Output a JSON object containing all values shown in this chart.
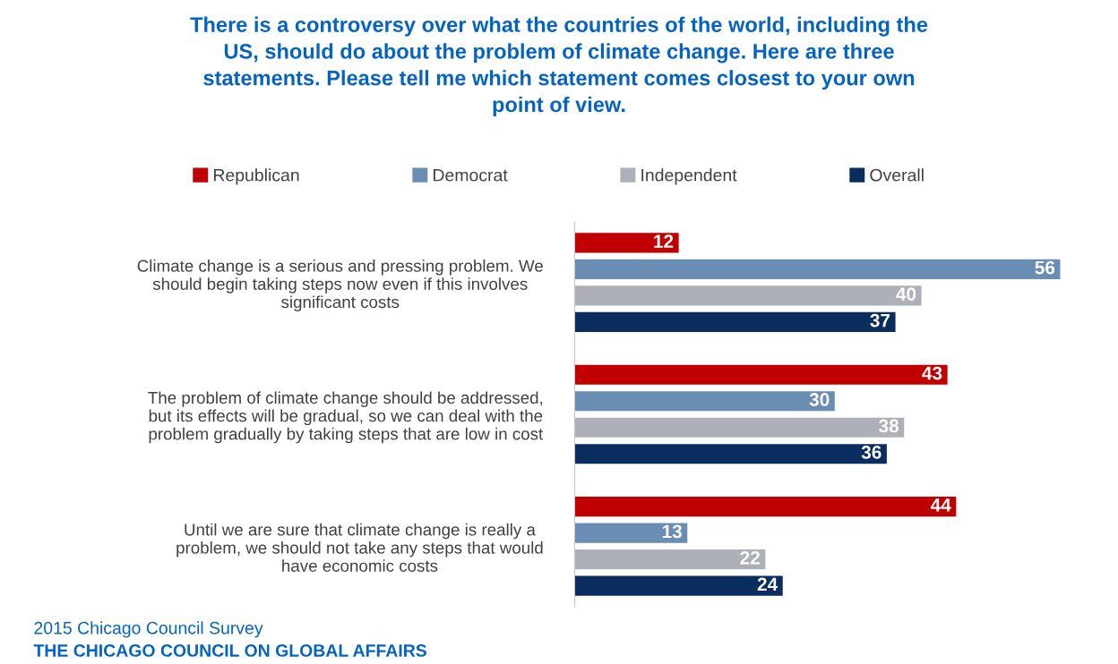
{
  "chart_data": {
    "type": "bar",
    "orientation": "horizontal",
    "title": "There is a controversy over what the countries of the world, including the\nUS, should do about the problem of climate change. Here are three\nstatements. Please tell me which statement comes closest to your own\npoint of view.",
    "categories": [
      "Climate change is a serious and pressing problem. We\nshould begin taking steps now even if this involves\nsignificant costs",
      "The problem of climate change should be addressed,\nbut its effects will be gradual, so we can deal with the\nproblem gradually by taking steps that are low in cost",
      "Until we are sure that climate change is really a\nproblem, we should not take any steps that would\nhave economic costs"
    ],
    "series": [
      {
        "name": "Republican",
        "color": "#c00000",
        "values": [
          12,
          43,
          44
        ]
      },
      {
        "name": "Democrat",
        "color": "#6a8db4",
        "values": [
          56,
          30,
          13
        ]
      },
      {
        "name": "Independent",
        "color": "#adb0b8",
        "values": [
          40,
          38,
          22
        ]
      },
      {
        "name": "Overall",
        "color": "#0b2c5f",
        "values": [
          37,
          36,
          24
        ]
      }
    ],
    "tick_labels": "y",
    "data_labels": true,
    "legend": "top",
    "grid": false,
    "annotations": [
      "2015 Chicago Council Survey",
      "THE CHICAGO COUNCIL ON GLOBAL AFFAIRS"
    ]
  }
}
